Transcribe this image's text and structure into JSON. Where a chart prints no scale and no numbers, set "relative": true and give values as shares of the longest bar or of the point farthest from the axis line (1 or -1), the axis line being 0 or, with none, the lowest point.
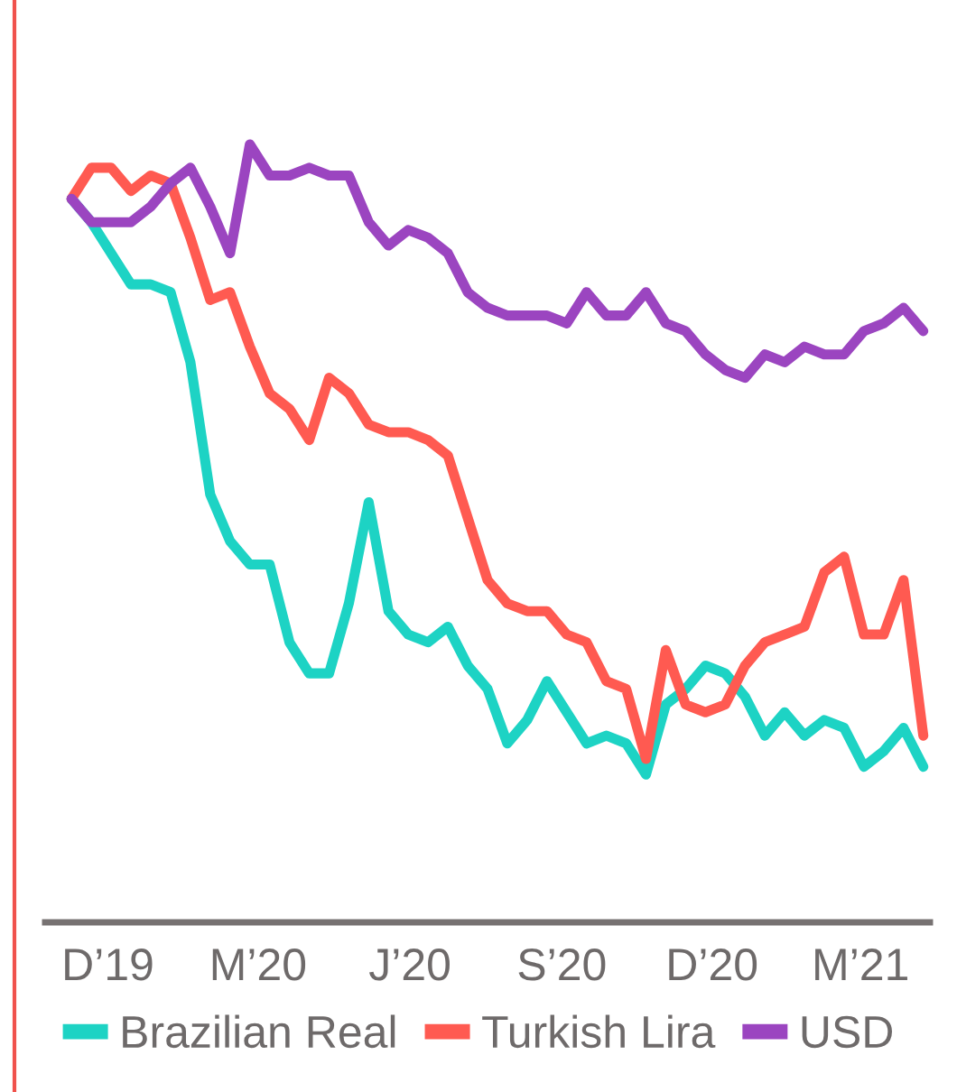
{
  "chart_data": {
    "type": "line",
    "relative": true,
    "legend": "bottom",
    "grid": false,
    "marker": "none",
    "line_style": "solid",
    "x": [
      "2019-11-09",
      "2019-11-21",
      "2019-12-03",
      "2019-12-15",
      "2019-12-27",
      "2020-01-08",
      "2020-01-20",
      "2020-02-01",
      "2020-02-13",
      "2020-02-25",
      "2020-03-08",
      "2020-03-20",
      "2020-04-01",
      "2020-04-13",
      "2020-04-25",
      "2020-05-07",
      "2020-05-19",
      "2020-05-31",
      "2020-06-12",
      "2020-06-24",
      "2020-07-06",
      "2020-07-18",
      "2020-07-30",
      "2020-08-11",
      "2020-08-23",
      "2020-09-04",
      "2020-09-16",
      "2020-09-28",
      "2020-10-10",
      "2020-10-22",
      "2020-11-03",
      "2020-11-15",
      "2020-11-27",
      "2020-12-09",
      "2020-12-21",
      "2021-01-02",
      "2021-01-14",
      "2021-01-26",
      "2021-02-07",
      "2021-02-19",
      "2021-03-03",
      "2021-03-15",
      "2021-03-27",
      "2021-04-08"
    ],
    "xlim": [
      "2019-10-24",
      "2021-04-12"
    ],
    "xticks": [
      {
        "value": "2019-12-01",
        "label": "D’19"
      },
      {
        "value": "2020-03-01",
        "label": "M’20"
      },
      {
        "value": "2020-06-01",
        "label": "J’20"
      },
      {
        "value": "2020-09-01",
        "label": "S’20"
      },
      {
        "value": "2020-12-01",
        "label": "D’20"
      },
      {
        "value": "2021-03-01",
        "label": "M’21"
      }
    ],
    "series": [
      {
        "name": "Brazilian Real",
        "color": "#1dd3c4",
        "values": [
          0.93,
          0.9,
          0.86,
          0.82,
          0.82,
          0.81,
          0.72,
          0.55,
          0.49,
          0.46,
          0.46,
          0.36,
          0.32,
          0.32,
          0.41,
          0.54,
          0.4,
          0.37,
          0.36,
          0.38,
          0.33,
          0.3,
          0.23,
          0.26,
          0.31,
          0.27,
          0.23,
          0.24,
          0.23,
          0.19,
          0.28,
          0.3,
          0.33,
          0.32,
          0.29,
          0.24,
          0.27,
          0.24,
          0.26,
          0.25,
          0.2,
          0.22,
          0.25,
          0.2
        ]
      },
      {
        "name": "Turkish Lira",
        "color": "#ff5a51",
        "values": [
          0.93,
          0.97,
          0.97,
          0.94,
          0.96,
          0.95,
          0.88,
          0.8,
          0.81,
          0.74,
          0.68,
          0.66,
          0.62,
          0.7,
          0.68,
          0.64,
          0.63,
          0.63,
          0.62,
          0.6,
          0.52,
          0.44,
          0.41,
          0.4,
          0.4,
          0.37,
          0.36,
          0.31,
          0.3,
          0.21,
          0.35,
          0.28,
          0.27,
          0.28,
          0.33,
          0.36,
          0.37,
          0.38,
          0.45,
          0.47,
          0.37,
          0.37,
          0.44,
          0.24
        ]
      },
      {
        "name": "USD",
        "color": "#9b45c0",
        "values": [
          0.93,
          0.9,
          0.9,
          0.9,
          0.92,
          0.95,
          0.97,
          0.92,
          0.86,
          1.0,
          0.96,
          0.96,
          0.97,
          0.96,
          0.96,
          0.9,
          0.87,
          0.89,
          0.88,
          0.86,
          0.81,
          0.79,
          0.78,
          0.78,
          0.78,
          0.77,
          0.81,
          0.78,
          0.78,
          0.81,
          0.77,
          0.76,
          0.73,
          0.71,
          0.7,
          0.73,
          0.72,
          0.74,
          0.73,
          0.73,
          0.76,
          0.77,
          0.79,
          0.76
        ]
      }
    ]
  }
}
